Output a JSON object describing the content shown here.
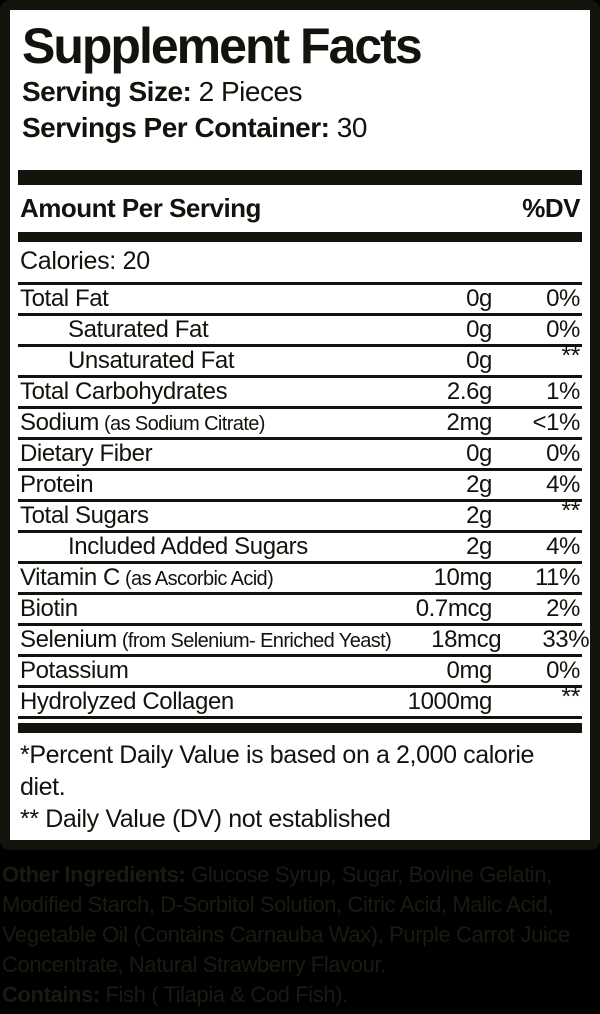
{
  "label": {
    "title": "Supplement Facts",
    "serving_size_label": "Serving Size:",
    "serving_size_value": "2 Pieces",
    "servings_per_container_label": "Servings Per Container:",
    "servings_per_container_value": "30",
    "header": {
      "amount_per_serving": "Amount Per Serving",
      "dv": "%DV"
    },
    "calories": "Calories: 20",
    "rows": [
      {
        "name": "Total Fat",
        "note": "",
        "amount": "0g",
        "dv": "0%",
        "indent": false
      },
      {
        "name": "Saturated Fat",
        "note": "",
        "amount": "0g",
        "dv": "0%",
        "indent": true
      },
      {
        "name": "Unsaturated Fat",
        "note": "",
        "amount": "0g",
        "dv": "**",
        "indent": true
      },
      {
        "name": "Total Carbohydrates",
        "note": "",
        "amount": "2.6g",
        "dv": "1%",
        "indent": false
      },
      {
        "name": "Sodium",
        "note": "(as Sodium Citrate)",
        "amount": "2mg",
        "dv": "<1%",
        "indent": false
      },
      {
        "name": "Dietary Fiber",
        "note": "",
        "amount": "0g",
        "dv": "0%",
        "indent": false
      },
      {
        "name": "Protein",
        "note": "",
        "amount": "2g",
        "dv": "4%",
        "indent": false
      },
      {
        "name": "Total Sugars",
        "note": "",
        "amount": "2g",
        "dv": "**",
        "indent": false
      },
      {
        "name": "Included Added Sugars",
        "note": "",
        "amount": "2g",
        "dv": "4%",
        "indent": true
      },
      {
        "name": "Vitamin C",
        "note": "(as Ascorbic Acid)",
        "amount": "10mg",
        "dv": "11%",
        "indent": false
      },
      {
        "name": "Biotin",
        "note": "",
        "amount": "0.7mcg",
        "dv": "2%",
        "indent": false
      },
      {
        "name": "Selenium",
        "note": "(from Selenium- Enriched Yeast)",
        "amount": "18mcg",
        "dv": "33%",
        "indent": false
      },
      {
        "name": "Potassium",
        "note": "",
        "amount": "0mg",
        "dv": "0%",
        "indent": false
      },
      {
        "name": "Hydrolyzed Collagen",
        "note": "",
        "amount": "1000mg",
        "dv": "**",
        "indent": false
      }
    ],
    "footnotes": [
      "*Percent Daily Value is based on a 2,000 calorie diet.",
      "** Daily Value (DV) not established"
    ]
  },
  "other_ingredients": {
    "label": "Other Ingredients:",
    "text": " Glucose Syrup, Sugar, Bovine Gelatin, Modified Starch, D-Sorbitol Solution, Citric Acid, Malic Acid, Vegetable Oil (Contains Carnauba Wax), Purple Carrot Juice Concentrate, Natural Strawberry Flavour.",
    "contains_label": "Contains:",
    "contains_text": " Fish ( Tilapia & Cod Fish)."
  },
  "colors": {
    "ink": "#13130d",
    "paper": "#ffffff",
    "background": "#000000",
    "muted_ink": "#1a1a13"
  }
}
